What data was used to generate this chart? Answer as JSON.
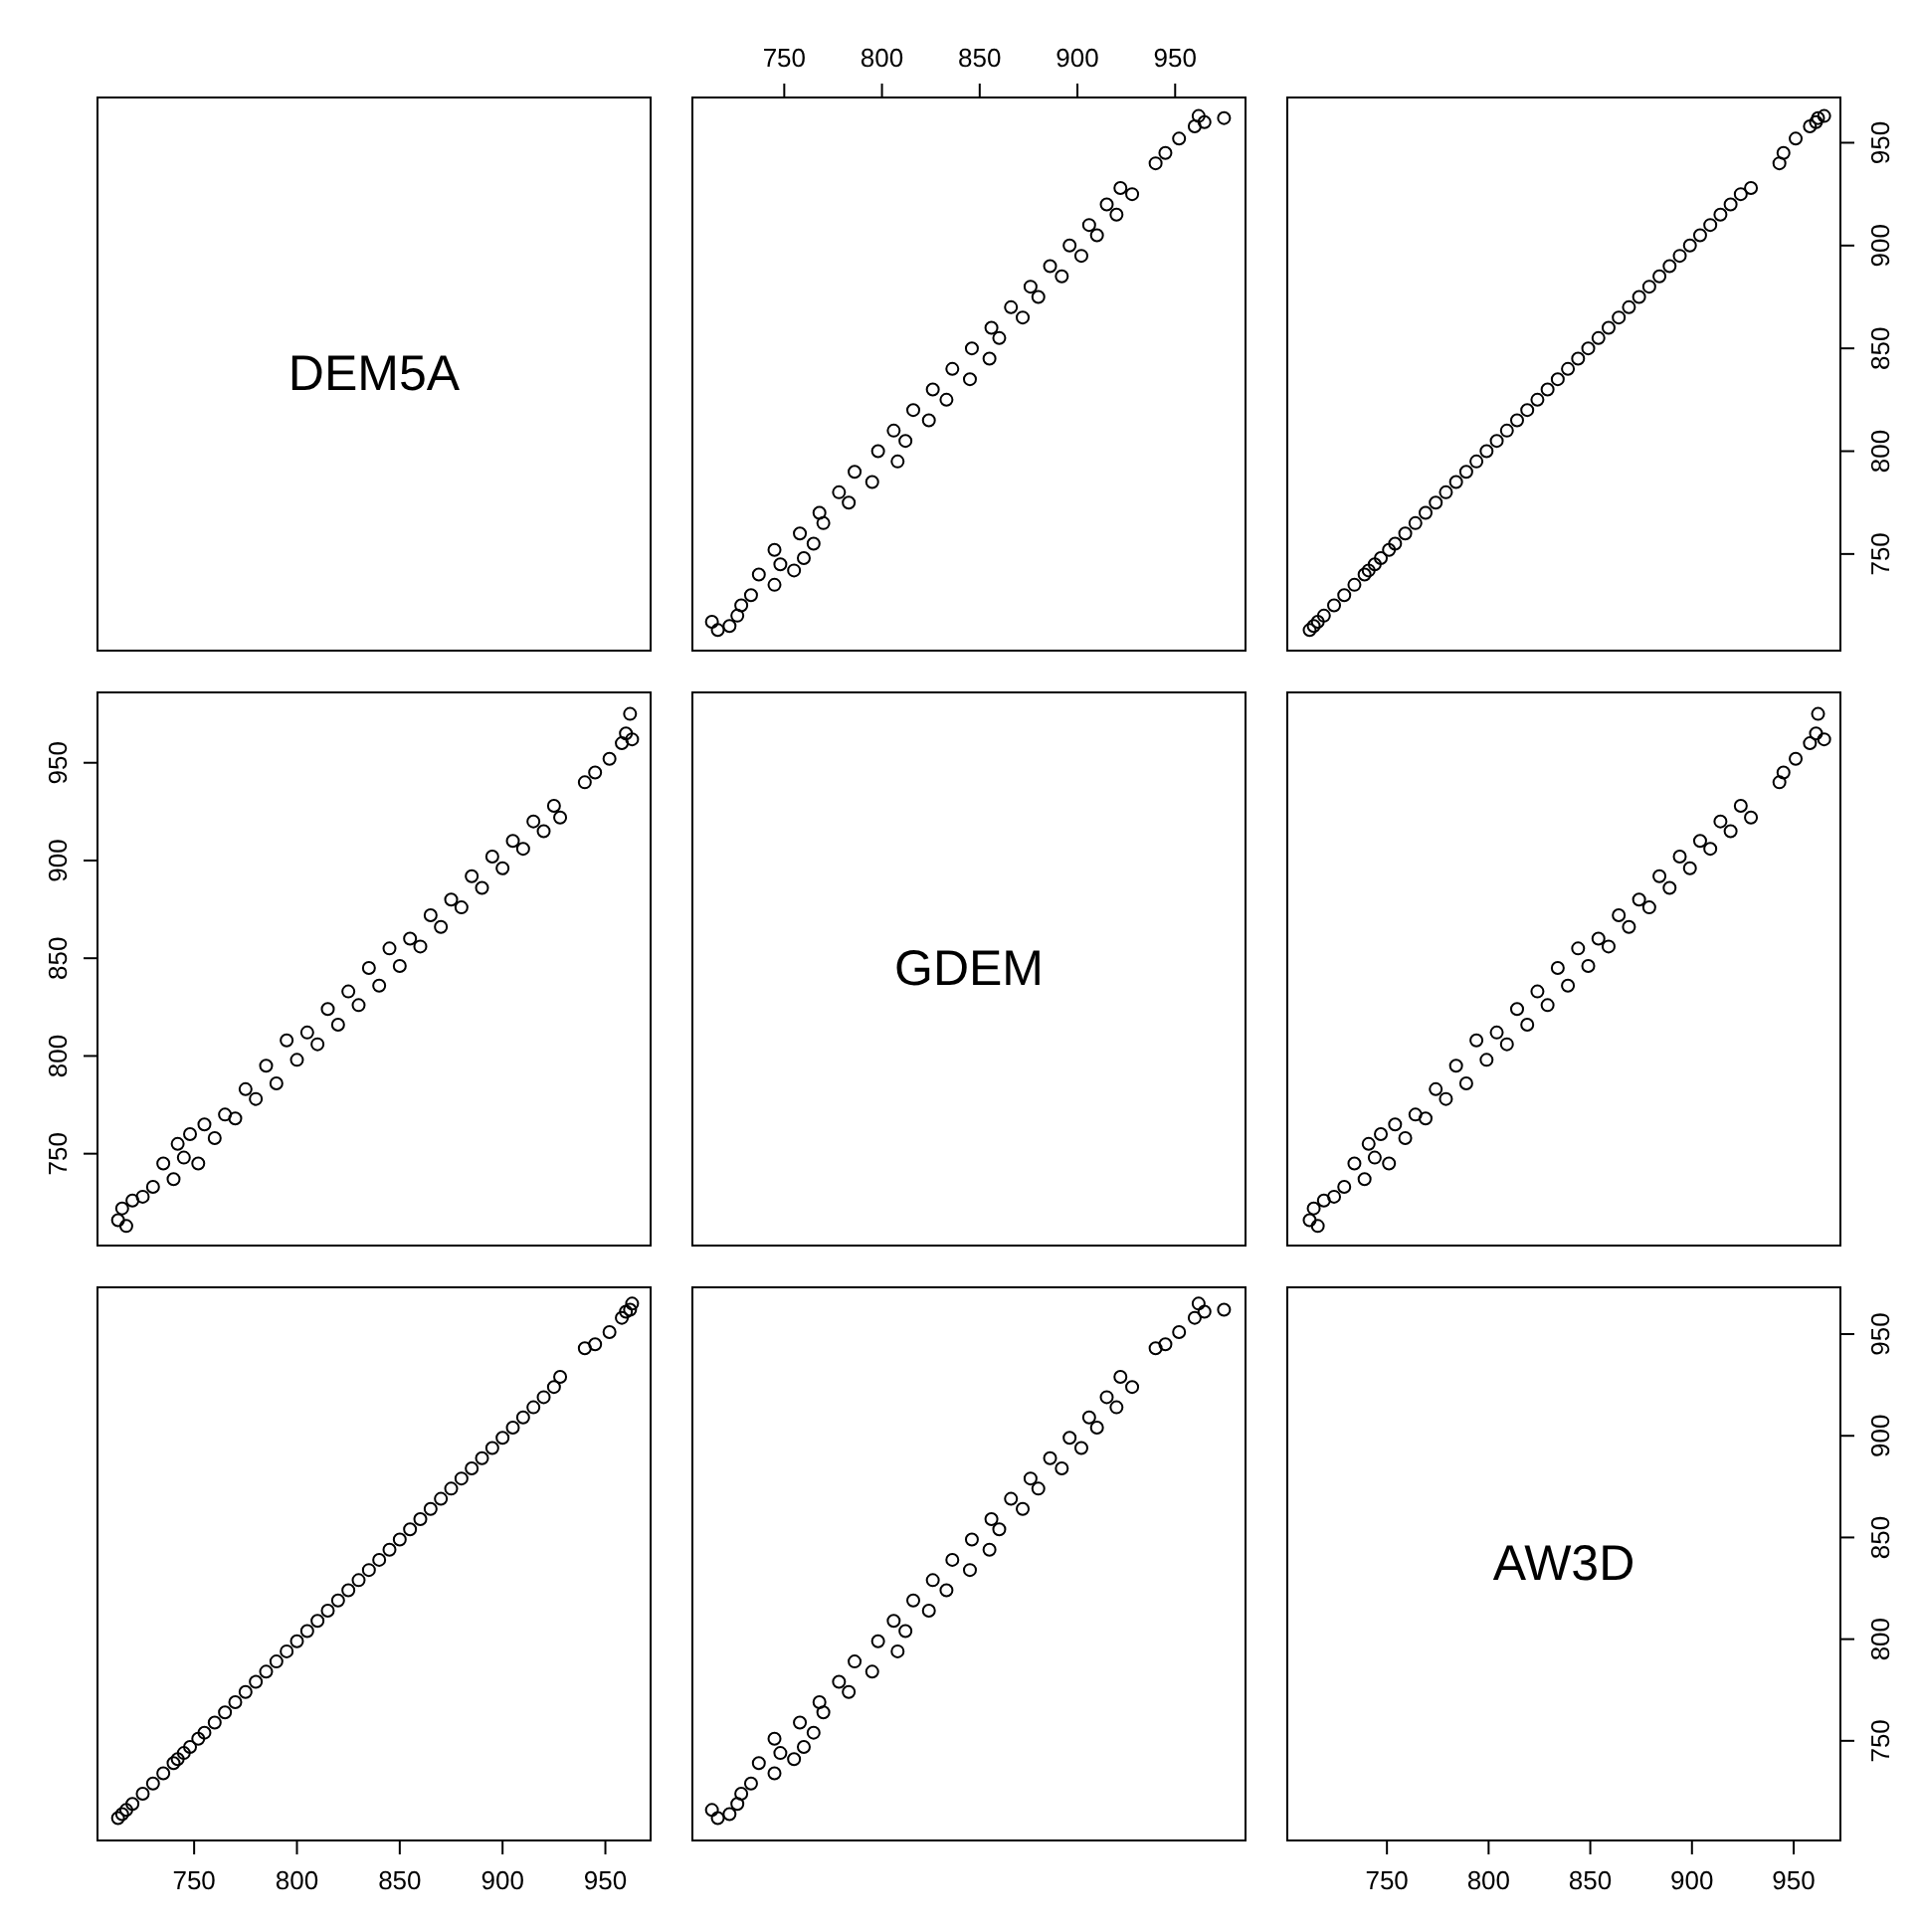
{
  "chart_data": [
    {
      "type": "other",
      "title": "DEM5A"
    },
    {
      "type": "scatter",
      "marker": "circle",
      "tick_labels": "x",
      "xlim": [
        703,
        986
      ],
      "ylim": [
        703,
        972
      ],
      "xticks": [
        750,
        800,
        850,
        900,
        950
      ],
      "x": [
        716,
        722,
        713,
        726,
        728,
        733,
        745,
        737,
        755,
        748,
        760,
        745,
        765,
        758,
        770,
        768,
        783,
        778,
        795,
        786,
        808,
        798,
        812,
        806,
        824,
        816,
        833,
        826,
        845,
        836,
        855,
        846,
        860,
        856,
        872,
        866,
        880,
        876,
        892,
        886,
        902,
        896,
        910,
        906,
        920,
        915,
        928,
        922,
        940,
        945,
        952,
        960,
        975,
        965,
        962
      ],
      "values": [
        713,
        715,
        717,
        720,
        725,
        730,
        735,
        740,
        742,
        745,
        748,
        752,
        755,
        760,
        765,
        770,
        775,
        780,
        785,
        790,
        795,
        800,
        805,
        810,
        815,
        820,
        825,
        830,
        835,
        840,
        845,
        850,
        855,
        860,
        865,
        870,
        875,
        880,
        885,
        890,
        895,
        900,
        905,
        910,
        915,
        920,
        925,
        928,
        940,
        945,
        952,
        958,
        962,
        960,
        963
      ]
    },
    {
      "type": "scatter",
      "marker": "circle",
      "tick_labels": "y",
      "xlim": [
        701,
        973
      ],
      "ylim": [
        703,
        972
      ],
      "yticks": [
        750,
        800,
        850,
        900,
        950
      ],
      "x": [
        712,
        714,
        716,
        719,
        724,
        729,
        734,
        739,
        741,
        744,
        747,
        751,
        754,
        759,
        764,
        769,
        774,
        779,
        784,
        789,
        794,
        799,
        804,
        809,
        814,
        819,
        824,
        829,
        834,
        839,
        844,
        849,
        854,
        859,
        864,
        869,
        874,
        879,
        884,
        889,
        894,
        899,
        904,
        909,
        914,
        919,
        924,
        929,
        943,
        945,
        951,
        958,
        962,
        961,
        965
      ],
      "values": [
        713,
        715,
        717,
        720,
        725,
        730,
        735,
        740,
        742,
        745,
        748,
        752,
        755,
        760,
        765,
        770,
        775,
        780,
        785,
        790,
        795,
        800,
        805,
        810,
        815,
        820,
        825,
        830,
        835,
        840,
        845,
        850,
        855,
        860,
        865,
        870,
        875,
        880,
        885,
        890,
        895,
        900,
        905,
        910,
        915,
        920,
        925,
        928,
        940,
        945,
        952,
        958,
        962,
        960,
        963
      ]
    },
    {
      "type": "scatter",
      "marker": "circle",
      "tick_labels": "y",
      "xlim": [
        703,
        972
      ],
      "ylim": [
        703,
        986
      ],
      "yticks": [
        750,
        800,
        850,
        900,
        950
      ],
      "x": [
        713,
        715,
        717,
        720,
        725,
        730,
        735,
        740,
        742,
        745,
        748,
        752,
        755,
        760,
        765,
        770,
        775,
        780,
        785,
        790,
        795,
        800,
        805,
        810,
        815,
        820,
        825,
        830,
        835,
        840,
        845,
        850,
        855,
        860,
        865,
        870,
        875,
        880,
        885,
        890,
        895,
        900,
        905,
        910,
        915,
        920,
        925,
        928,
        940,
        945,
        952,
        958,
        962,
        960,
        963
      ],
      "values": [
        716,
        722,
        713,
        726,
        728,
        733,
        745,
        737,
        755,
        748,
        760,
        745,
        765,
        758,
        770,
        768,
        783,
        778,
        795,
        786,
        808,
        798,
        812,
        806,
        824,
        816,
        833,
        826,
        845,
        836,
        855,
        846,
        860,
        856,
        872,
        866,
        880,
        876,
        892,
        886,
        902,
        896,
        910,
        906,
        920,
        915,
        928,
        922,
        940,
        945,
        952,
        960,
        975,
        965,
        962
      ]
    },
    {
      "type": "other",
      "title": "GDEM"
    },
    {
      "type": "scatter",
      "marker": "circle",
      "tick_labels": false,
      "xlim": [
        701,
        973
      ],
      "ylim": [
        703,
        986
      ],
      "x": [
        712,
        714,
        716,
        719,
        724,
        729,
        734,
        739,
        741,
        744,
        747,
        751,
        754,
        759,
        764,
        769,
        774,
        779,
        784,
        789,
        794,
        799,
        804,
        809,
        814,
        819,
        824,
        829,
        834,
        839,
        844,
        849,
        854,
        859,
        864,
        869,
        874,
        879,
        884,
        889,
        894,
        899,
        904,
        909,
        914,
        919,
        924,
        929,
        943,
        945,
        951,
        958,
        962,
        961,
        965
      ],
      "values": [
        716,
        722,
        713,
        726,
        728,
        733,
        745,
        737,
        755,
        748,
        760,
        745,
        765,
        758,
        770,
        768,
        783,
        778,
        795,
        786,
        808,
        798,
        812,
        806,
        824,
        816,
        833,
        826,
        845,
        836,
        855,
        846,
        860,
        856,
        872,
        866,
        880,
        876,
        892,
        886,
        902,
        896,
        910,
        906,
        920,
        915,
        928,
        922,
        940,
        945,
        952,
        960,
        975,
        965,
        962
      ]
    },
    {
      "type": "scatter",
      "marker": "circle",
      "tick_labels": "x",
      "xlim": [
        703,
        972
      ],
      "ylim": [
        701,
        973
      ],
      "xticks": [
        750,
        800,
        850,
        900,
        950
      ],
      "x": [
        713,
        715,
        717,
        720,
        725,
        730,
        735,
        740,
        742,
        745,
        748,
        752,
        755,
        760,
        765,
        770,
        775,
        780,
        785,
        790,
        795,
        800,
        805,
        810,
        815,
        820,
        825,
        830,
        835,
        840,
        845,
        850,
        855,
        860,
        865,
        870,
        875,
        880,
        885,
        890,
        895,
        900,
        905,
        910,
        915,
        920,
        925,
        928,
        940,
        945,
        952,
        958,
        962,
        960,
        963
      ],
      "values": [
        712,
        714,
        716,
        719,
        724,
        729,
        734,
        739,
        741,
        744,
        747,
        751,
        754,
        759,
        764,
        769,
        774,
        779,
        784,
        789,
        794,
        799,
        804,
        809,
        814,
        819,
        824,
        829,
        834,
        839,
        844,
        849,
        854,
        859,
        864,
        869,
        874,
        879,
        884,
        889,
        894,
        899,
        904,
        909,
        914,
        919,
        924,
        929,
        943,
        945,
        951,
        958,
        962,
        961,
        965
      ]
    },
    {
      "type": "scatter",
      "marker": "circle",
      "tick_labels": false,
      "xlim": [
        703,
        986
      ],
      "ylim": [
        701,
        973
      ],
      "x": [
        716,
        722,
        713,
        726,
        728,
        733,
        745,
        737,
        755,
        748,
        760,
        745,
        765,
        758,
        770,
        768,
        783,
        778,
        795,
        786,
        808,
        798,
        812,
        806,
        824,
        816,
        833,
        826,
        845,
        836,
        855,
        846,
        860,
        856,
        872,
        866,
        880,
        876,
        892,
        886,
        902,
        896,
        910,
        906,
        920,
        915,
        928,
        922,
        940,
        945,
        952,
        960,
        975,
        965,
        962
      ],
      "values": [
        712,
        714,
        716,
        719,
        724,
        729,
        734,
        739,
        741,
        744,
        747,
        751,
        754,
        759,
        764,
        769,
        774,
        779,
        784,
        789,
        794,
        799,
        804,
        809,
        814,
        819,
        824,
        829,
        834,
        839,
        844,
        849,
        854,
        859,
        864,
        869,
        874,
        879,
        884,
        889,
        894,
        899,
        904,
        909,
        914,
        919,
        924,
        929,
        943,
        945,
        951,
        958,
        962,
        961,
        965
      ]
    },
    {
      "type": "scatter",
      "title": "AW3D",
      "xlim": [
        701,
        973
      ],
      "ylim": [
        701,
        973
      ],
      "xticks": [
        750,
        800,
        850,
        900,
        950
      ],
      "yticks": [
        750,
        800,
        850,
        900,
        950
      ]
    }
  ]
}
